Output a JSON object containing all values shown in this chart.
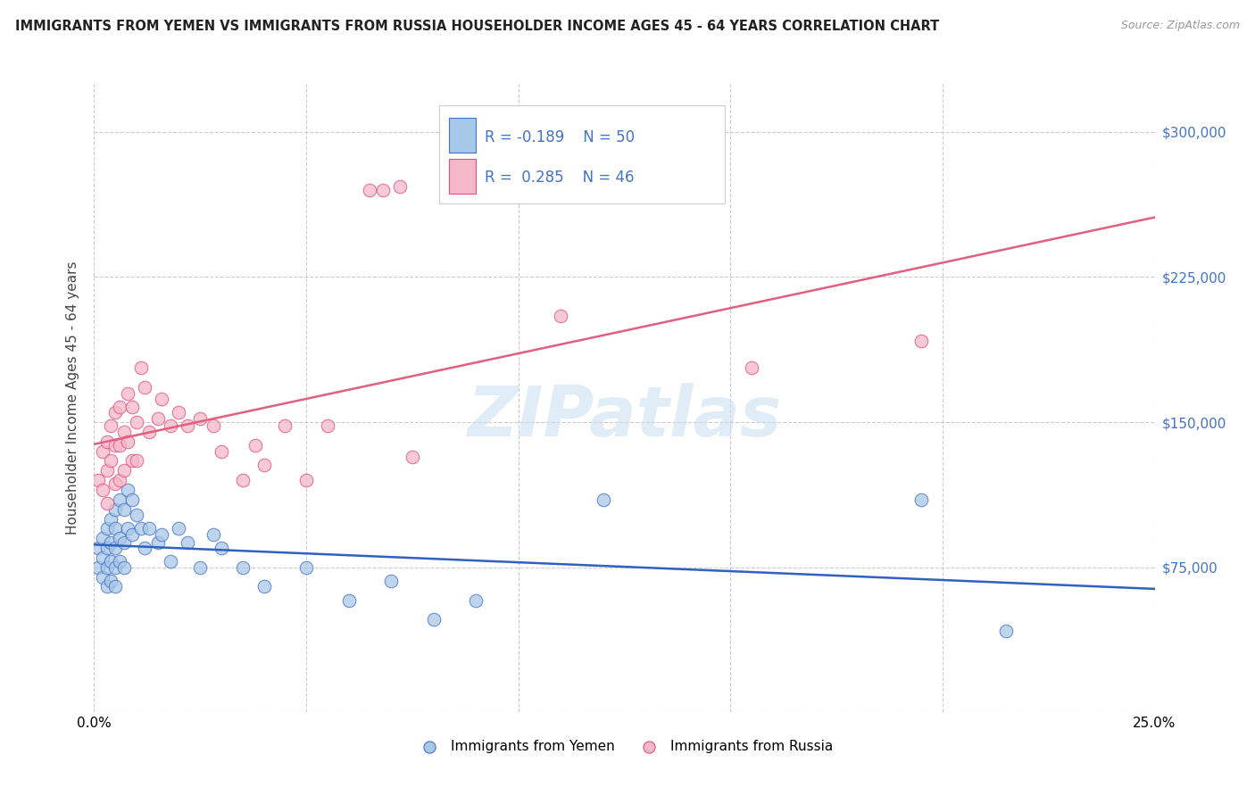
{
  "title": "IMMIGRANTS FROM YEMEN VS IMMIGRANTS FROM RUSSIA HOUSEHOLDER INCOME AGES 45 - 64 YEARS CORRELATION CHART",
  "source": "Source: ZipAtlas.com",
  "ylabel": "Householder Income Ages 45 - 64 years",
  "xlim": [
    0.0,
    0.25
  ],
  "ylim": [
    0,
    325000
  ],
  "yticks": [
    0,
    75000,
    150000,
    225000,
    300000
  ],
  "ytick_labels": [
    "",
    "$75,000",
    "$150,000",
    "$225,000",
    "$300,000"
  ],
  "xticks": [
    0.0,
    0.05,
    0.1,
    0.15,
    0.2,
    0.25
  ],
  "xtick_labels": [
    "0.0%",
    "",
    "",
    "",
    "",
    "25.0%"
  ],
  "legend_r_yemen": "-0.189",
  "legend_n_yemen": "50",
  "legend_r_russia": "0.285",
  "legend_n_russia": "46",
  "bottom_legend_labels": [
    "Immigrants from Yemen",
    "Immigrants from Russia"
  ],
  "watermark": "ZIPatlas",
  "yemen_color": "#a8c8e8",
  "russia_color": "#f4b8c8",
  "yemen_edge_color": "#4472c4",
  "russia_edge_color": "#e05080",
  "yemen_line_color": "#3060c0",
  "russia_line_color": "#e06080",
  "label_color": "#4472c4",
  "background_color": "#ffffff",
  "yemen_x": [
    0.001,
    0.001,
    0.002,
    0.002,
    0.002,
    0.003,
    0.003,
    0.003,
    0.003,
    0.004,
    0.004,
    0.004,
    0.004,
    0.005,
    0.005,
    0.005,
    0.005,
    0.005,
    0.006,
    0.006,
    0.006,
    0.007,
    0.007,
    0.007,
    0.008,
    0.008,
    0.009,
    0.009,
    0.01,
    0.011,
    0.012,
    0.013,
    0.015,
    0.016,
    0.018,
    0.02,
    0.022,
    0.025,
    0.028,
    0.03,
    0.035,
    0.04,
    0.05,
    0.06,
    0.07,
    0.08,
    0.09,
    0.12,
    0.195,
    0.215
  ],
  "yemen_y": [
    85000,
    75000,
    90000,
    80000,
    70000,
    95000,
    85000,
    75000,
    65000,
    100000,
    88000,
    78000,
    68000,
    105000,
    95000,
    85000,
    75000,
    65000,
    110000,
    90000,
    78000,
    105000,
    88000,
    75000,
    115000,
    95000,
    110000,
    92000,
    102000,
    95000,
    85000,
    95000,
    88000,
    92000,
    78000,
    95000,
    88000,
    75000,
    92000,
    85000,
    75000,
    65000,
    75000,
    58000,
    68000,
    48000,
    58000,
    110000,
    110000,
    42000
  ],
  "russia_x": [
    0.001,
    0.002,
    0.002,
    0.003,
    0.003,
    0.003,
    0.004,
    0.004,
    0.005,
    0.005,
    0.005,
    0.006,
    0.006,
    0.006,
    0.007,
    0.007,
    0.008,
    0.008,
    0.009,
    0.009,
    0.01,
    0.01,
    0.011,
    0.012,
    0.013,
    0.015,
    0.016,
    0.018,
    0.02,
    0.022,
    0.025,
    0.028,
    0.03,
    0.035,
    0.038,
    0.04,
    0.045,
    0.05,
    0.055,
    0.065,
    0.068,
    0.072,
    0.075,
    0.11,
    0.155,
    0.195
  ],
  "russia_y": [
    120000,
    135000,
    115000,
    140000,
    125000,
    108000,
    148000,
    130000,
    155000,
    138000,
    118000,
    158000,
    138000,
    120000,
    145000,
    125000,
    165000,
    140000,
    158000,
    130000,
    150000,
    130000,
    178000,
    168000,
    145000,
    152000,
    162000,
    148000,
    155000,
    148000,
    152000,
    148000,
    135000,
    120000,
    138000,
    128000,
    148000,
    120000,
    148000,
    270000,
    270000,
    272000,
    132000,
    205000,
    178000,
    192000
  ]
}
